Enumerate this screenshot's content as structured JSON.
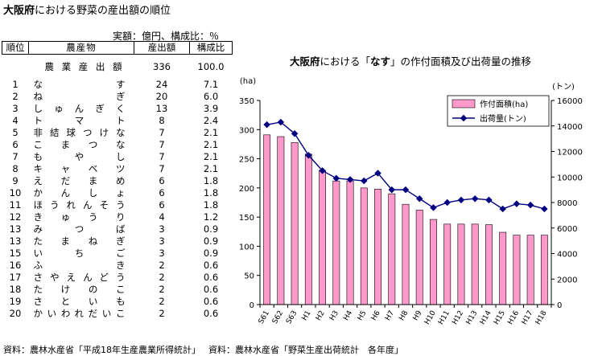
{
  "page": {
    "title_bold": "大阪府",
    "title_rest": "における野菜の産出額の順位",
    "unit_note": "実額：億円、構成比：％"
  },
  "table": {
    "headers": [
      "順位",
      "農産物",
      "産出額",
      "構成比"
    ],
    "total": {
      "name": "農業産出額",
      "value": "336",
      "share": "100.0"
    },
    "rows": [
      {
        "rank": "1",
        "name": "なす",
        "value": "24",
        "share": "7.1"
      },
      {
        "rank": "2",
        "name": "ねぎ",
        "value": "20",
        "share": "6.0"
      },
      {
        "rank": "3",
        "name": "しゅんぎく",
        "value": "13",
        "share": "3.9"
      },
      {
        "rank": "4",
        "name": "トマト",
        "value": "8",
        "share": "2.4"
      },
      {
        "rank": "5",
        "name": "非結球つけな",
        "value": "7",
        "share": "2.1"
      },
      {
        "rank": "6",
        "name": "こまつな",
        "value": "7",
        "share": "2.1"
      },
      {
        "rank": "7",
        "name": "もやし",
        "value": "7",
        "share": "2.1"
      },
      {
        "rank": "8",
        "name": "キャベツ",
        "value": "7",
        "share": "2.1"
      },
      {
        "rank": "9",
        "name": "えだまめ",
        "value": "6",
        "share": "1.8"
      },
      {
        "rank": "10",
        "name": "かんしょ",
        "value": "6",
        "share": "1.8"
      },
      {
        "rank": "11",
        "name": "ほうれんそう",
        "value": "6",
        "share": "1.8"
      },
      {
        "rank": "12",
        "name": "きゅうり",
        "value": "4",
        "share": "1.2"
      },
      {
        "rank": "13",
        "name": "みつば",
        "value": "3",
        "share": "0.9"
      },
      {
        "rank": "13",
        "name": "たまねぎ",
        "value": "3",
        "share": "0.9"
      },
      {
        "rank": "15",
        "name": "いちご",
        "value": "3",
        "share": "0.9"
      },
      {
        "rank": "16",
        "name": "ふき",
        "value": "2",
        "share": "0.6"
      },
      {
        "rank": "17",
        "name": "さやえんどう",
        "value": "2",
        "share": "0.6"
      },
      {
        "rank": "18",
        "name": "たけのこ",
        "value": "2",
        "share": "0.6"
      },
      {
        "rank": "19",
        "name": "さといも",
        "value": "2",
        "share": "0.6"
      },
      {
        "rank": "20",
        "name": "かいわれだいこ",
        "value": "2",
        "share": "0.6"
      }
    ]
  },
  "sources": [
    "資料：農林水産省「平成18年生産農業所得統計」",
    "資料：農林水産省「野菜生産出荷統計　各年度」"
  ],
  "chart_data": {
    "type": "bar",
    "title_bold_1": "大阪府",
    "title_mid": "における「",
    "title_bold_2": "なす",
    "title_rest": "」の作付面積及び出荷量の推移",
    "left_unit": "(ha)",
    "right_unit": "(トン)",
    "categories": [
      "S61",
      "S62",
      "S63",
      "H1",
      "H2",
      "H3",
      "H4",
      "H5",
      "H6",
      "H7",
      "H8",
      "H9",
      "H10",
      "H11",
      "H12",
      "H13",
      "H14",
      "H15",
      "H16",
      "H17",
      "H18"
    ],
    "series": [
      {
        "name": "作付面積(ha)",
        "kind": "bar",
        "axis": "left",
        "color": "#ff99cc",
        "values": [
          291,
          288,
          278,
          258,
          230,
          212,
          212,
          200,
          198,
          190,
          172,
          162,
          146,
          138,
          138,
          138,
          137,
          124,
          119,
          119,
          119
        ]
      },
      {
        "name": "出荷量(トン)",
        "kind": "line",
        "axis": "right",
        "color": "#000080",
        "values": [
          14100,
          14300,
          13400,
          11700,
          10500,
          9900,
          9800,
          9700,
          10300,
          9000,
          9000,
          8300,
          7600,
          8000,
          8200,
          8300,
          8200,
          7500,
          7900,
          7800,
          7500
        ]
      }
    ],
    "y_left": {
      "min": 0,
      "max": 350,
      "step": 50
    },
    "y_right": {
      "min": 0,
      "max": 16000,
      "step": 2000
    },
    "legend_placement": "top-right",
    "grid": false
  }
}
